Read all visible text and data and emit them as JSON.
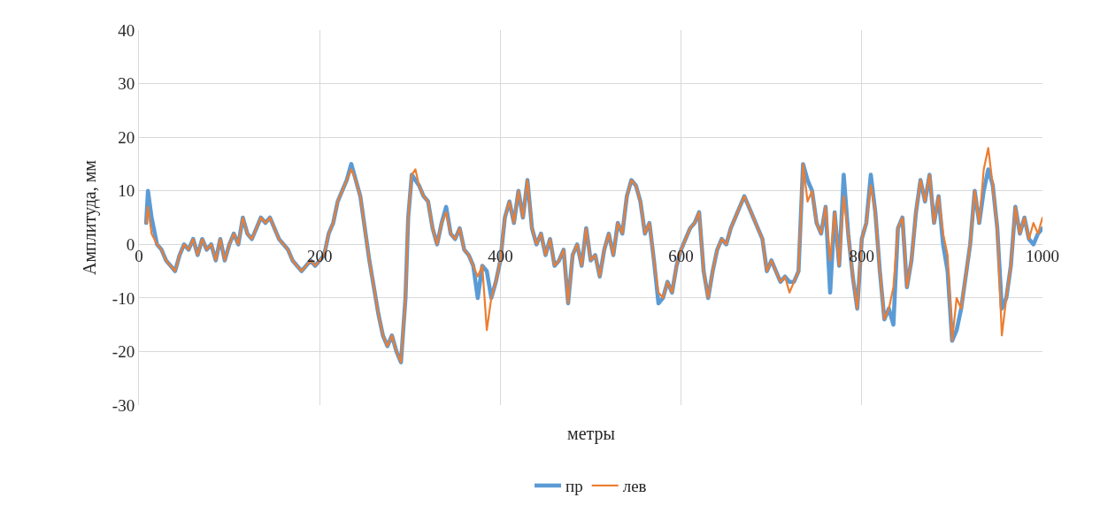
{
  "chart_data": {
    "type": "line",
    "xlabel": "метры",
    "ylabel": "Амплитуда, мм",
    "x": [
      8,
      10,
      14,
      20,
      25,
      30,
      35,
      40,
      45,
      50,
      55,
      60,
      65,
      70,
      75,
      80,
      85,
      90,
      95,
      100,
      105,
      110,
      115,
      120,
      125,
      130,
      135,
      140,
      145,
      150,
      155,
      160,
      165,
      170,
      175,
      180,
      185,
      190,
      195,
      200,
      205,
      210,
      215,
      220,
      225,
      230,
      235,
      240,
      245,
      250,
      255,
      260,
      265,
      270,
      275,
      280,
      285,
      290,
      295,
      298,
      302,
      306,
      310,
      315,
      320,
      325,
      330,
      335,
      340,
      345,
      350,
      355,
      360,
      365,
      370,
      375,
      380,
      385,
      390,
      395,
      400,
      405,
      410,
      415,
      420,
      425,
      430,
      435,
      440,
      445,
      450,
      455,
      460,
      465,
      470,
      475,
      480,
      485,
      490,
      495,
      500,
      505,
      510,
      515,
      520,
      525,
      530,
      535,
      540,
      545,
      550,
      555,
      560,
      565,
      570,
      575,
      580,
      585,
      590,
      595,
      600,
      605,
      610,
      615,
      620,
      625,
      630,
      635,
      640,
      645,
      650,
      655,
      660,
      665,
      670,
      675,
      680,
      685,
      690,
      695,
      700,
      705,
      710,
      715,
      720,
      725,
      730,
      735,
      740,
      745,
      750,
      755,
      760,
      765,
      770,
      775,
      780,
      785,
      790,
      795,
      800,
      805,
      810,
      815,
      820,
      825,
      830,
      835,
      840,
      845,
      850,
      855,
      860,
      865,
      870,
      875,
      880,
      885,
      890,
      895,
      900,
      905,
      910,
      915,
      920,
      925,
      930,
      935,
      940,
      945,
      950,
      955,
      960,
      965,
      970,
      975,
      980,
      985,
      990,
      995,
      1000
    ],
    "series": [
      {
        "name": "пр",
        "color": "#5b9bd5",
        "values": [
          4,
          10,
          5,
          0,
          -1,
          -3,
          -4,
          -5,
          -2,
          0,
          -1,
          1,
          -2,
          1,
          -1,
          0,
          -3,
          1,
          -3,
          0,
          2,
          0,
          5,
          2,
          1,
          3,
          5,
          4,
          5,
          3,
          1,
          0,
          -1,
          -3,
          -4,
          -5,
          -4,
          -3,
          -4,
          -3,
          -2,
          2,
          4,
          8,
          10,
          12,
          15,
          12,
          9,
          3,
          -3,
          -8,
          -13,
          -17,
          -19,
          -17,
          -20,
          -22,
          -10,
          5,
          13,
          12,
          11,
          9,
          8,
          3,
          0,
          4,
          7,
          2,
          1,
          3,
          -1,
          -2,
          -4,
          -10,
          -4,
          -5,
          -10,
          -7,
          -3,
          5,
          8,
          4,
          10,
          5,
          12,
          3,
          0,
          2,
          -2,
          1,
          -4,
          -3,
          -1,
          -11,
          -2,
          0,
          -4,
          3,
          -3,
          -2,
          -6,
          -1,
          2,
          -2,
          4,
          2,
          9,
          12,
          11,
          8,
          2,
          4,
          -3,
          -11,
          -10,
          -7,
          -9,
          -4,
          -1,
          1,
          3,
          4,
          6,
          -5,
          -10,
          -5,
          -1,
          1,
          0,
          3,
          5,
          7,
          9,
          7,
          5,
          3,
          1,
          -5,
          -3,
          -5,
          -7,
          -6,
          -7,
          -7,
          -5,
          15,
          12,
          10,
          4,
          2,
          7,
          -9,
          6,
          -4,
          13,
          2,
          -6,
          -12,
          1,
          4,
          13,
          6,
          -5,
          -14,
          -12,
          -15,
          3,
          5,
          -8,
          -3,
          6,
          12,
          8,
          13,
          4,
          9,
          0,
          -5,
          -18,
          -16,
          -12,
          -6,
          0,
          10,
          4,
          10,
          14,
          11,
          3,
          -12,
          -10,
          -4,
          7,
          2,
          5,
          1,
          0,
          2,
          3
        ]
      },
      {
        "name": "лев",
        "color": "#ed7d31",
        "values": [
          4,
          7,
          2,
          0,
          -1,
          -3,
          -4,
          -5,
          -2,
          0,
          -1,
          1,
          -2,
          1,
          -1,
          0,
          -3,
          1,
          -3,
          0,
          2,
          0,
          5,
          2,
          1,
          3,
          5,
          4,
          5,
          3,
          1,
          0,
          -1,
          -3,
          -4,
          -5,
          -4,
          -3,
          -4,
          -3,
          -2,
          2,
          4,
          8,
          10,
          12,
          14,
          12,
          9,
          3,
          -3,
          -8,
          -13,
          -17,
          -19,
          -17,
          -20,
          -22,
          -10,
          5,
          13,
          14,
          11,
          9,
          8,
          3,
          0,
          4,
          6,
          2,
          1,
          3,
          -1,
          -2,
          -4,
          -6,
          -4,
          -16,
          -10,
          -7,
          -3,
          5,
          8,
          4,
          10,
          5,
          12,
          3,
          0,
          2,
          -2,
          1,
          -4,
          -3,
          -1,
          -11,
          -2,
          0,
          -4,
          3,
          -3,
          -2,
          -6,
          -1,
          2,
          -2,
          4,
          2,
          9,
          12,
          11,
          8,
          2,
          4,
          -3,
          -9,
          -10,
          -7,
          -9,
          -4,
          -1,
          1,
          3,
          4,
          6,
          -5,
          -10,
          -5,
          -1,
          1,
          0,
          3,
          5,
          7,
          9,
          7,
          5,
          3,
          1,
          -5,
          -3,
          -5,
          -7,
          -6,
          -9,
          -7,
          -5,
          15,
          8,
          10,
          4,
          2,
          7,
          -3,
          6,
          -4,
          9,
          2,
          -6,
          -12,
          1,
          4,
          11,
          6,
          -5,
          -14,
          -12,
          -8,
          3,
          5,
          -8,
          -3,
          6,
          12,
          8,
          13,
          4,
          9,
          2,
          -2,
          -18,
          -10,
          -12,
          -6,
          0,
          10,
          4,
          14,
          18,
          11,
          3,
          -17,
          -10,
          -4,
          7,
          2,
          5,
          1,
          4,
          2,
          5
        ]
      }
    ],
    "xlim": [
      0,
      1000
    ],
    "xticks": [
      0,
      200,
      400,
      600,
      800,
      1000
    ],
    "ylim": [
      -30,
      40
    ],
    "yticks": [
      -30,
      -20,
      -10,
      0,
      10,
      20,
      30,
      40
    ],
    "grid": true,
    "legend": "bottom",
    "marker": "none",
    "line_style": "solid"
  }
}
